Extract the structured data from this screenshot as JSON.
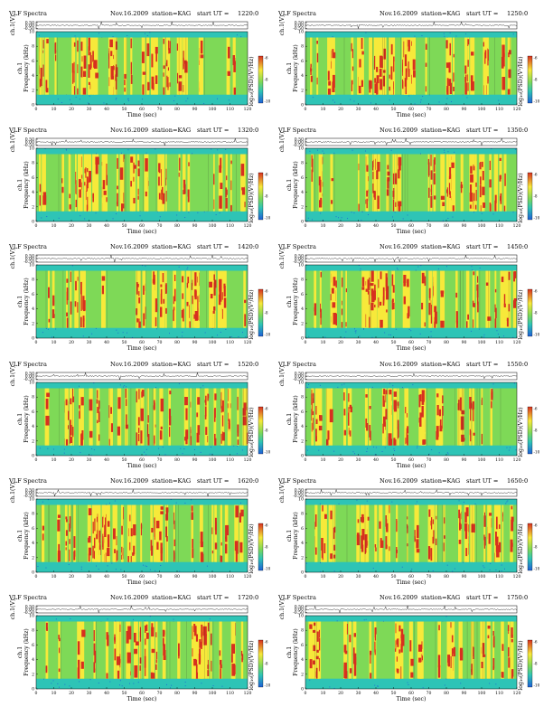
{
  "header_labels": {
    "spectra": "VLF Spectra",
    "station": "station=KAG",
    "start_ut": "start  UT ="
  },
  "axis_labels": {
    "waveform": "ch.1(V)",
    "frequency": "ch.1\nFrequency  (kHz)",
    "time": "Time  (sec)",
    "colorbar": "log₁₀(PSD)(V²/Hz)"
  },
  "colors": {
    "background": "#2ec4b6",
    "low": "#1f5fd6",
    "mid_low": "#7ed957",
    "mid": "#f7e93a",
    "high": "#d7301f",
    "noise": "#222222"
  },
  "chart_data": [
    {
      "type": "heatmap",
      "date": "Nov.16.2009",
      "start_ut": "1220:0",
      "waveform_yticks": [
        "0.50",
        "0.00",
        "-0.50"
      ],
      "xticks": [
        "0",
        "10",
        "20",
        "30",
        "40",
        "50",
        "60",
        "70",
        "80",
        "90",
        "100",
        "110",
        "120"
      ],
      "yticks": [
        "0",
        "2",
        "4",
        "6",
        "8",
        "10"
      ],
      "colorbar_ticks": [
        "-6",
        "-8",
        "-10"
      ],
      "xlim": [
        0,
        120
      ],
      "ylim": [
        0,
        10
      ]
    },
    {
      "type": "heatmap",
      "date": "Nov.16.2009",
      "start_ut": "1250:0",
      "waveform_yticks": [
        "0.50",
        "0.00",
        "-0.50"
      ],
      "xticks": [
        "0",
        "10",
        "20",
        "30",
        "40",
        "50",
        "60",
        "70",
        "80",
        "90",
        "100",
        "110",
        "120"
      ],
      "yticks": [
        "0",
        "2",
        "4",
        "6",
        "8",
        "10"
      ],
      "colorbar_ticks": [
        "-6",
        "-8",
        "-10"
      ],
      "xlim": [
        0,
        120
      ],
      "ylim": [
        0,
        10
      ]
    },
    {
      "type": "heatmap",
      "date": "Nov.16.2009",
      "start_ut": "1320:0",
      "waveform_yticks": [
        "0.50",
        "0.00",
        "-0.50"
      ],
      "xticks": [
        "0",
        "10",
        "20",
        "30",
        "40",
        "50",
        "60",
        "70",
        "80",
        "90",
        "100",
        "110",
        "120"
      ],
      "yticks": [
        "0",
        "2",
        "4",
        "6",
        "8",
        "10"
      ],
      "colorbar_ticks": [
        "-6",
        "-8",
        "-10"
      ],
      "xlim": [
        0,
        120
      ],
      "ylim": [
        0,
        10
      ]
    },
    {
      "type": "heatmap",
      "date": "Nov.16.2009",
      "start_ut": "1350:0",
      "waveform_yticks": [
        "0.50",
        "0.00",
        "-0.50"
      ],
      "xticks": [
        "0",
        "10",
        "20",
        "30",
        "40",
        "50",
        "60",
        "70",
        "80",
        "90",
        "100",
        "110",
        "120"
      ],
      "yticks": [
        "0",
        "2",
        "4",
        "6",
        "8",
        "10"
      ],
      "colorbar_ticks": [
        "-6",
        "-8",
        "-10"
      ],
      "xlim": [
        0,
        120
      ],
      "ylim": [
        0,
        10
      ]
    },
    {
      "type": "heatmap",
      "date": "Nov.16.2009",
      "start_ut": "1420:0",
      "waveform_yticks": [
        "0.50",
        "0.00",
        "-0.50"
      ],
      "xticks": [
        "0",
        "10",
        "20",
        "30",
        "40",
        "50",
        "60",
        "70",
        "80",
        "90",
        "100",
        "110",
        "120"
      ],
      "yticks": [
        "0",
        "2",
        "4",
        "6",
        "8",
        "10"
      ],
      "colorbar_ticks": [
        "-6",
        "-8",
        "-10"
      ],
      "xlim": [
        0,
        120
      ],
      "ylim": [
        0,
        10
      ]
    },
    {
      "type": "heatmap",
      "date": "Nov.16.2009",
      "start_ut": "1450:0",
      "waveform_yticks": [
        "0.50",
        "0.00",
        "-0.50"
      ],
      "xticks": [
        "0",
        "10",
        "20",
        "30",
        "40",
        "50",
        "60",
        "70",
        "80",
        "90",
        "100",
        "110",
        "120"
      ],
      "yticks": [
        "0",
        "2",
        "4",
        "6",
        "8",
        "10"
      ],
      "colorbar_ticks": [
        "-6",
        "-8",
        "-10"
      ],
      "xlim": [
        0,
        120
      ],
      "ylim": [
        0,
        10
      ]
    },
    {
      "type": "heatmap",
      "date": "Nov.16.2009",
      "start_ut": "1520:0",
      "waveform_yticks": [
        "0.50",
        "0.00",
        "-0.50"
      ],
      "xticks": [
        "0",
        "10",
        "20",
        "30",
        "40",
        "50",
        "60",
        "70",
        "80",
        "90",
        "100",
        "110",
        "120"
      ],
      "yticks": [
        "0",
        "2",
        "4",
        "6",
        "8",
        "10"
      ],
      "colorbar_ticks": [
        "-6",
        "-8",
        "-10"
      ],
      "xlim": [
        0,
        120
      ],
      "ylim": [
        0,
        10
      ]
    },
    {
      "type": "heatmap",
      "date": "Nov.16.2009",
      "start_ut": "1550:0",
      "waveform_yticks": [
        "0.50",
        "0.00",
        "-0.50"
      ],
      "xticks": [
        "0",
        "10",
        "20",
        "30",
        "40",
        "50",
        "60",
        "70",
        "80",
        "90",
        "100",
        "110",
        "120"
      ],
      "yticks": [
        "0",
        "2",
        "4",
        "6",
        "8",
        "10"
      ],
      "colorbar_ticks": [
        "-6",
        "-8",
        "-10"
      ],
      "xlim": [
        0,
        120
      ],
      "ylim": [
        0,
        10
      ]
    },
    {
      "type": "heatmap",
      "date": "Nov.16.2009",
      "start_ut": "1620:0",
      "waveform_yticks": [
        "0.50",
        "0.00",
        "-0.50"
      ],
      "xticks": [
        "0",
        "10",
        "20",
        "30",
        "40",
        "50",
        "60",
        "70",
        "80",
        "90",
        "100",
        "110",
        "120"
      ],
      "yticks": [
        "0",
        "2",
        "4",
        "6",
        "8",
        "10"
      ],
      "colorbar_ticks": [
        "-6",
        "-8",
        "-10"
      ],
      "xlim": [
        0,
        120
      ],
      "ylim": [
        0,
        10
      ]
    },
    {
      "type": "heatmap",
      "date": "Nov.16.2009",
      "start_ut": "1650:0",
      "waveform_yticks": [
        "0.50",
        "0.00",
        "-0.50"
      ],
      "xticks": [
        "0",
        "10",
        "20",
        "30",
        "40",
        "50",
        "60",
        "70",
        "80",
        "90",
        "100",
        "110",
        "120"
      ],
      "yticks": [
        "0",
        "2",
        "4",
        "6",
        "8",
        "10"
      ],
      "colorbar_ticks": [
        "-6",
        "-8",
        "-10"
      ],
      "xlim": [
        0,
        120
      ],
      "ylim": [
        0,
        10
      ]
    },
    {
      "type": "heatmap",
      "date": "Nov.16.2009",
      "start_ut": "1720:0",
      "waveform_yticks": [
        "0.50",
        "0.00",
        "-0.50"
      ],
      "xticks": [
        "0",
        "10",
        "20",
        "30",
        "40",
        "50",
        "60",
        "70",
        "80",
        "90",
        "100",
        "110",
        "120"
      ],
      "yticks": [
        "0",
        "2",
        "4",
        "6",
        "8",
        "10"
      ],
      "colorbar_ticks": [
        "-6",
        "-8",
        "-10"
      ],
      "xlim": [
        0,
        120
      ],
      "ylim": [
        0,
        10
      ]
    },
    {
      "type": "heatmap",
      "date": "Nov.16.2009",
      "start_ut": "1750:0",
      "waveform_yticks": [
        "0.50",
        "0.00",
        "-0.50"
      ],
      "xticks": [
        "0",
        "10",
        "20",
        "30",
        "40",
        "50",
        "60",
        "70",
        "80",
        "90",
        "100",
        "110",
        "120"
      ],
      "yticks": [
        "0",
        "2",
        "4",
        "6",
        "8",
        "10"
      ],
      "colorbar_ticks": [
        "-6",
        "-8",
        "-10"
      ],
      "xlim": [
        0,
        120
      ],
      "ylim": [
        0,
        10
      ]
    }
  ]
}
